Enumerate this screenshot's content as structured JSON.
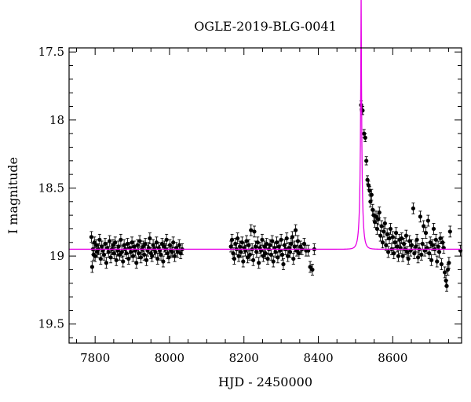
{
  "chart_data": {
    "type": "scatter",
    "title": "OGLE-2019-BLG-0041",
    "xlabel": "HJD - 2450000",
    "ylabel": "I magnitude",
    "xlim": [
      7730,
      8785
    ],
    "ylim": [
      19.64,
      17.47
    ],
    "y_inverted": true,
    "x_ticks": [
      7800,
      8000,
      8200,
      8400,
      8600
    ],
    "x_tick_labels": [
      "7800",
      "8000",
      "8200",
      "8400",
      "8600"
    ],
    "y_ticks": [
      17.5,
      18,
      18.5,
      19,
      19.5
    ],
    "y_tick_labels": [
      "17.5",
      "18",
      "18.5",
      "19",
      "19.5"
    ],
    "grid": false,
    "legend": "none",
    "colors": {
      "points": "#000000",
      "model": "#e600e6",
      "frame": "#000000"
    },
    "series": [
      {
        "kind": "points_with_errorbars",
        "points": [
          [
            7790,
            18.86,
            0.04
          ],
          [
            7792,
            19.08,
            0.04
          ],
          [
            7794,
            18.95,
            0.04
          ],
          [
            7796,
            18.99,
            0.04
          ],
          [
            7798,
            18.9,
            0.04
          ],
          [
            7800,
            19.0,
            0.04
          ],
          [
            7803,
            18.92,
            0.04
          ],
          [
            7806,
            18.97,
            0.04
          ],
          [
            7809,
            18.95,
            0.04
          ],
          [
            7812,
            18.88,
            0.04
          ],
          [
            7815,
            19.02,
            0.04
          ],
          [
            7818,
            18.93,
            0.04
          ],
          [
            7821,
            18.96,
            0.04
          ],
          [
            7824,
            18.99,
            0.04
          ],
          [
            7827,
            18.91,
            0.04
          ],
          [
            7830,
            19.05,
            0.04
          ],
          [
            7833,
            18.94,
            0.04
          ],
          [
            7836,
            18.97,
            0.04
          ],
          [
            7839,
            18.89,
            0.04
          ],
          [
            7842,
            19.01,
            0.04
          ],
          [
            7845,
            18.95,
            0.04
          ],
          [
            7848,
            18.92,
            0.04
          ],
          [
            7851,
            18.98,
            0.04
          ],
          [
            7854,
            18.9,
            0.04
          ],
          [
            7857,
            19.03,
            0.04
          ],
          [
            7860,
            18.96,
            0.04
          ],
          [
            7863,
            18.93,
            0.04
          ],
          [
            7866,
            18.99,
            0.04
          ],
          [
            7869,
            18.88,
            0.04
          ],
          [
            7872,
            18.97,
            0.04
          ],
          [
            7875,
            19.04,
            0.04
          ],
          [
            7878,
            18.92,
            0.04
          ],
          [
            7881,
            18.95,
            0.04
          ],
          [
            7884,
            18.98,
            0.04
          ],
          [
            7887,
            18.91,
            0.04
          ],
          [
            7890,
            19.02,
            0.04
          ],
          [
            7893,
            18.94,
            0.04
          ],
          [
            7896,
            18.97,
            0.04
          ],
          [
            7899,
            18.9,
            0.04
          ],
          [
            7902,
            19.0,
            0.04
          ],
          [
            7905,
            18.93,
            0.04
          ],
          [
            7908,
            18.96,
            0.04
          ],
          [
            7911,
            19.05,
            0.04
          ],
          [
            7914,
            18.92,
            0.04
          ],
          [
            7917,
            18.98,
            0.04
          ],
          [
            7920,
            18.89,
            0.04
          ],
          [
            7923,
            19.01,
            0.04
          ],
          [
            7926,
            18.95,
            0.04
          ],
          [
            7929,
            18.93,
            0.04
          ],
          [
            7932,
            18.99,
            0.04
          ],
          [
            7935,
            18.91,
            0.04
          ],
          [
            7938,
            19.03,
            0.04
          ],
          [
            7941,
            18.96,
            0.04
          ],
          [
            7944,
            18.94,
            0.04
          ],
          [
            7947,
            18.87,
            0.04
          ],
          [
            7950,
            18.98,
            0.04
          ],
          [
            7953,
            19.0,
            0.04
          ],
          [
            7956,
            18.92,
            0.04
          ],
          [
            7959,
            18.95,
            0.04
          ],
          [
            7962,
            18.97,
            0.04
          ],
          [
            7965,
            18.9,
            0.04
          ],
          [
            7968,
            19.02,
            0.04
          ],
          [
            7971,
            18.94,
            0.04
          ],
          [
            7974,
            18.96,
            0.04
          ],
          [
            7977,
            18.99,
            0.04
          ],
          [
            7980,
            18.91,
            0.04
          ],
          [
            7983,
            19.04,
            0.04
          ],
          [
            7986,
            18.93,
            0.04
          ],
          [
            7989,
            18.95,
            0.04
          ],
          [
            7992,
            18.88,
            0.04
          ],
          [
            7995,
            18.98,
            0.04
          ],
          [
            7998,
            19.01,
            0.04
          ],
          [
            8001,
            18.92,
            0.04
          ],
          [
            8004,
            18.96,
            0.04
          ],
          [
            8007,
            18.97,
            0.04
          ],
          [
            8010,
            18.9,
            0.04
          ],
          [
            8014,
            19.0,
            0.04
          ],
          [
            8018,
            18.94,
            0.04
          ],
          [
            8022,
            18.97,
            0.04
          ],
          [
            8026,
            18.92,
            0.04
          ],
          [
            8030,
            18.98,
            0.04
          ],
          [
            8034,
            18.95,
            0.04
          ],
          [
            8165,
            18.93,
            0.04
          ],
          [
            8168,
            18.88,
            0.04
          ],
          [
            8171,
            18.98,
            0.04
          ],
          [
            8174,
            19.02,
            0.04
          ],
          [
            8177,
            18.91,
            0.04
          ],
          [
            8180,
            18.95,
            0.04
          ],
          [
            8183,
            18.87,
            0.04
          ],
          [
            8186,
            19.0,
            0.04
          ],
          [
            8189,
            18.93,
            0.04
          ],
          [
            8192,
            18.97,
            0.04
          ],
          [
            8195,
            18.9,
            0.04
          ],
          [
            8198,
            19.04,
            0.04
          ],
          [
            8201,
            18.94,
            0.04
          ],
          [
            8204,
            18.96,
            0.04
          ],
          [
            8207,
            18.89,
            0.04
          ],
          [
            8210,
            19.01,
            0.04
          ],
          [
            8213,
            18.92,
            0.04
          ],
          [
            8216,
            18.99,
            0.04
          ],
          [
            8219,
            18.81,
            0.04
          ],
          [
            8222,
            18.95,
            0.04
          ],
          [
            8225,
            19.03,
            0.04
          ],
          [
            8228,
            18.82,
            0.04
          ],
          [
            8231,
            18.93,
            0.04
          ],
          [
            8234,
            18.97,
            0.04
          ],
          [
            8237,
            18.9,
            0.04
          ],
          [
            8240,
            19.05,
            0.04
          ],
          [
            8243,
            18.94,
            0.04
          ],
          [
            8246,
            18.96,
            0.04
          ],
          [
            8249,
            18.88,
            0.04
          ],
          [
            8252,
            19.0,
            0.04
          ],
          [
            8255,
            18.93,
            0.04
          ],
          [
            8258,
            18.98,
            0.04
          ],
          [
            8261,
            18.91,
            0.04
          ],
          [
            8264,
            19.02,
            0.04
          ],
          [
            8267,
            18.95,
            0.04
          ],
          [
            8270,
            18.92,
            0.04
          ],
          [
            8273,
            18.99,
            0.04
          ],
          [
            8276,
            18.89,
            0.04
          ],
          [
            8279,
            19.04,
            0.04
          ],
          [
            8282,
            18.94,
            0.04
          ],
          [
            8285,
            18.97,
            0.04
          ],
          [
            8288,
            18.9,
            0.04
          ],
          [
            8291,
            19.01,
            0.04
          ],
          [
            8294,
            18.93,
            0.04
          ],
          [
            8297,
            18.96,
            0.04
          ],
          [
            8300,
            18.88,
            0.04
          ],
          [
            8303,
            18.99,
            0.04
          ],
          [
            8306,
            19.06,
            0.04
          ],
          [
            8309,
            18.92,
            0.04
          ],
          [
            8312,
            18.95,
            0.04
          ],
          [
            8315,
            18.87,
            0.04
          ],
          [
            8318,
            19.0,
            0.04
          ],
          [
            8321,
            18.94,
            0.04
          ],
          [
            8324,
            18.97,
            0.04
          ],
          [
            8327,
            18.91,
            0.04
          ],
          [
            8330,
            18.86,
            0.04
          ],
          [
            8333,
            19.02,
            0.04
          ],
          [
            8336,
            18.93,
            0.04
          ],
          [
            8339,
            18.81,
            0.04
          ],
          [
            8342,
            18.96,
            0.04
          ],
          [
            8345,
            18.89,
            0.04
          ],
          [
            8348,
            18.98,
            0.04
          ],
          [
            8352,
            18.93,
            0.04
          ],
          [
            8356,
            18.95,
            0.04
          ],
          [
            8362,
            18.91,
            0.04
          ],
          [
            8367,
            18.96,
            0.04
          ],
          [
            8373,
            18.96,
            0.04
          ],
          [
            8378,
            19.08,
            0.04
          ],
          [
            8384,
            19.1,
            0.04
          ],
          [
            8389,
            18.95,
            0.04
          ],
          [
            8515,
            17.89,
            0.03
          ],
          [
            8517,
            17.93,
            0.03
          ],
          [
            8519,
            17.93,
            0.03
          ],
          [
            8523,
            18.1,
            0.03
          ],
          [
            8526,
            18.13,
            0.03
          ],
          [
            8529,
            18.3,
            0.03
          ],
          [
            8532,
            18.44,
            0.03
          ],
          [
            8535,
            18.48,
            0.03
          ],
          [
            8538,
            18.52,
            0.03
          ],
          [
            8540,
            18.6,
            0.04
          ],
          [
            8543,
            18.55,
            0.04
          ],
          [
            8546,
            18.66,
            0.04
          ],
          [
            8549,
            18.7,
            0.04
          ],
          [
            8552,
            18.75,
            0.04
          ],
          [
            8555,
            18.71,
            0.04
          ],
          [
            8558,
            18.8,
            0.04
          ],
          [
            8561,
            18.73,
            0.04
          ],
          [
            8564,
            18.68,
            0.04
          ],
          [
            8567,
            18.85,
            0.04
          ],
          [
            8570,
            18.78,
            0.04
          ],
          [
            8573,
            18.9,
            0.04
          ],
          [
            8576,
            18.82,
            0.04
          ],
          [
            8579,
            18.76,
            0.04
          ],
          [
            8582,
            18.92,
            0.04
          ],
          [
            8585,
            18.84,
            0.04
          ],
          [
            8588,
            18.97,
            0.04
          ],
          [
            8591,
            18.87,
            0.04
          ],
          [
            8594,
            18.8,
            0.04
          ],
          [
            8597,
            18.95,
            0.04
          ],
          [
            8600,
            18.86,
            0.04
          ],
          [
            8603,
            18.98,
            0.04
          ],
          [
            8606,
            18.9,
            0.04
          ],
          [
            8609,
            18.83,
            0.04
          ],
          [
            8612,
            18.93,
            0.04
          ],
          [
            8615,
            19.0,
            0.04
          ],
          [
            8618,
            18.88,
            0.04
          ],
          [
            8621,
            18.94,
            0.04
          ],
          [
            8624,
            18.87,
            0.04
          ],
          [
            8627,
            19.0,
            0.04
          ],
          [
            8630,
            18.91,
            0.04
          ],
          [
            8633,
            18.95,
            0.04
          ],
          [
            8636,
            18.85,
            0.04
          ],
          [
            8639,
            18.97,
            0.04
          ],
          [
            8642,
            19.02,
            0.04
          ],
          [
            8645,
            18.89,
            0.04
          ],
          [
            8648,
            18.96,
            0.04
          ],
          [
            8651,
            18.92,
            0.04
          ],
          [
            8655,
            18.65,
            0.04
          ],
          [
            8658,
            18.98,
            0.04
          ],
          [
            8662,
            18.93,
            0.04
          ],
          [
            8665,
            18.88,
            0.04
          ],
          [
            8668,
            19.01,
            0.04
          ],
          [
            8671,
            18.95,
            0.04
          ],
          [
            8674,
            18.71,
            0.04
          ],
          [
            8677,
            18.99,
            0.04
          ],
          [
            8680,
            18.91,
            0.04
          ],
          [
            8683,
            18.78,
            0.04
          ],
          [
            8686,
            18.96,
            0.04
          ],
          [
            8689,
            18.83,
            0.04
          ],
          [
            8692,
            18.94,
            0.04
          ],
          [
            8695,
            18.74,
            0.04
          ],
          [
            8698,
            18.98,
            0.04
          ],
          [
            8701,
            18.9,
            0.04
          ],
          [
            8704,
            19.03,
            0.04
          ],
          [
            8707,
            18.92,
            0.04
          ],
          [
            8710,
            18.8,
            0.04
          ],
          [
            8713,
            18.95,
            0.04
          ],
          [
            8716,
            18.88,
            0.04
          ],
          [
            8719,
            19.04,
            0.04
          ],
          [
            8722,
            18.93,
            0.04
          ],
          [
            8725,
            18.97,
            0.04
          ],
          [
            8728,
            18.87,
            0.04
          ],
          [
            8731,
            19.06,
            0.04
          ],
          [
            8734,
            18.9,
            0.04
          ],
          [
            8737,
            18.94,
            0.04
          ],
          [
            8740,
            19.12,
            0.04
          ],
          [
            8743,
            19.18,
            0.04
          ],
          [
            8745,
            19.22,
            0.04
          ],
          [
            8748,
            19.1,
            0.04
          ],
          [
            8751,
            19.05,
            0.04
          ],
          [
            8754,
            18.82,
            0.04
          ],
          [
            8782,
            18.96,
            0.04
          ]
        ]
      },
      {
        "kind": "model_curve",
        "model": {
          "t0": 8515,
          "u0": 0.069,
          "tE": 8,
          "baseline": 18.95,
          "fs": 0.35,
          "x_range": [
            7730,
            8785
          ]
        }
      }
    ]
  }
}
